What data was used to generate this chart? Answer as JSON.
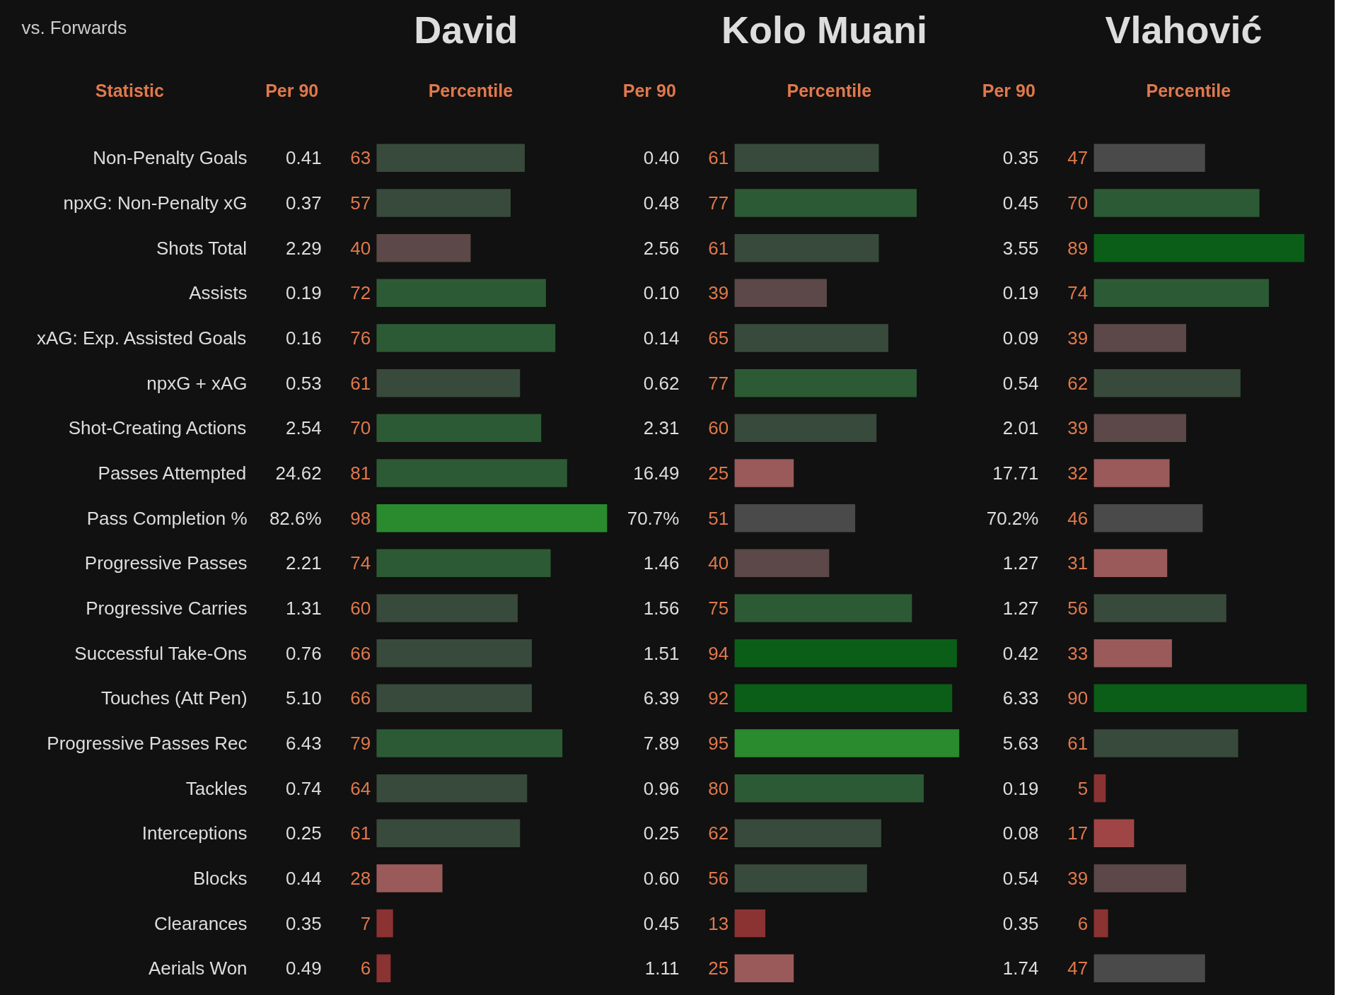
{
  "chart_data": [
    {
      "type": "bar",
      "orientation": "horizontal",
      "title": "David",
      "subtitle": "vs. Forwards",
      "ylabel": "Statistic",
      "xlabel": "Percentile",
      "tick_labels": "y",
      "data_labels": true,
      "categories": [
        "Non-Penalty Goals",
        "npxG: Non-Penalty xG",
        "Shots Total",
        "Assists",
        "xAG: Exp. Assisted Goals",
        "npxG + xAG",
        "Shot-Creating Actions",
        "Passes Attempted",
        "Pass Completion %",
        "Progressive Passes",
        "Progressive Carries",
        "Successful Take-Ons",
        "Touches (Att Pen)",
        "Progressive Passes Rec",
        "Tackles",
        "Interceptions",
        "Blocks",
        "Clearances",
        "Aerials Won"
      ],
      "values": [
        63,
        57,
        40,
        72,
        76,
        61,
        70,
        81,
        98,
        74,
        60,
        66,
        66,
        79,
        64,
        61,
        28,
        7,
        6
      ],
      "colors": [
        "#384a3b",
        "#384a3b",
        "#5c4848",
        "#2c5a34",
        "#2c5a34",
        "#384a3b",
        "#2c5a34",
        "#2c5a34",
        "#2a8a2e",
        "#2c5a34",
        "#384a3b",
        "#384a3b",
        "#384a3b",
        "#2c5a34",
        "#384a3b",
        "#384a3b",
        "#9a5a5a",
        "#8b3232",
        "#8b3232"
      ],
      "annotations": [
        "Per 90",
        "0.41",
        "0.37",
        "2.29",
        "0.19",
        "0.16",
        "0.53",
        "2.54",
        "24.62",
        "82.6%",
        "2.21",
        "1.31",
        "0.76",
        "5.10",
        "6.43",
        "0.74",
        "0.25",
        "0.44",
        "0.35",
        "0.49"
      ]
    },
    {
      "type": "bar",
      "orientation": "horizontal",
      "title": "Kolo Muani",
      "xlabel": "Percentile",
      "tick_labels": false,
      "data_labels": true,
      "categories": [
        null,
        null,
        null,
        null,
        null,
        null,
        null,
        null,
        null,
        null,
        null,
        null,
        null,
        null,
        null,
        null,
        null,
        null,
        null
      ],
      "values": [
        61,
        77,
        61,
        39,
        65,
        77,
        60,
        25,
        51,
        40,
        75,
        94,
        92,
        95,
        80,
        62,
        56,
        13,
        25
      ],
      "colors": [
        "#384a3b",
        "#2c5a34",
        "#384a3b",
        "#5c4848",
        "#384a3b",
        "#2c5a34",
        "#384a3b",
        "#9a5a5a",
        "#4a4a4a",
        "#5c4848",
        "#2c5a34",
        "#0b5e17",
        "#0b5e17",
        "#2a8a2e",
        "#2c5a34",
        "#384a3b",
        "#384a3b",
        "#8b3232",
        "#9a5a5a"
      ],
      "annotations": [
        "Per 90",
        "0.40",
        "0.48",
        "2.56",
        "0.10",
        "0.14",
        "0.62",
        "2.31",
        "16.49",
        "70.7%",
        "1.46",
        "1.56",
        "1.51",
        "6.39",
        "7.89",
        "0.96",
        "0.25",
        "0.60",
        "0.45",
        "1.11"
      ]
    },
    {
      "type": "bar",
      "orientation": "horizontal",
      "title": "Vlahović",
      "xlabel": "Percentile",
      "tick_labels": false,
      "data_labels": true,
      "categories": [
        null,
        null,
        null,
        null,
        null,
        null,
        null,
        null,
        null,
        null,
        null,
        null,
        null,
        null,
        null,
        null,
        null,
        null,
        null
      ],
      "values": [
        47,
        70,
        89,
        74,
        39,
        62,
        39,
        32,
        46,
        31,
        56,
        33,
        90,
        61,
        5,
        17,
        39,
        6,
        47
      ],
      "colors": [
        "#4a4a4a",
        "#2c5a34",
        "#0b5e17",
        "#2c5a34",
        "#5c4848",
        "#384a3b",
        "#5c4848",
        "#9a5a5a",
        "#4a4a4a",
        "#9a5a5a",
        "#384a3b",
        "#9a5a5a",
        "#0b5e17",
        "#384a3b",
        "#8b3232",
        "#a04545",
        "#5c4848",
        "#8b3232",
        "#4a4a4a"
      ],
      "annotations": [
        "Per 90",
        "0.35",
        "0.45",
        "3.55",
        "0.19",
        "0.09",
        "0.54",
        "2.01",
        "17.71",
        "70.2%",
        "1.27",
        "1.27",
        "0.42",
        "6.33",
        "5.63",
        "0.19",
        "0.08",
        "0.54",
        "0.35",
        "1.74"
      ]
    }
  ]
}
